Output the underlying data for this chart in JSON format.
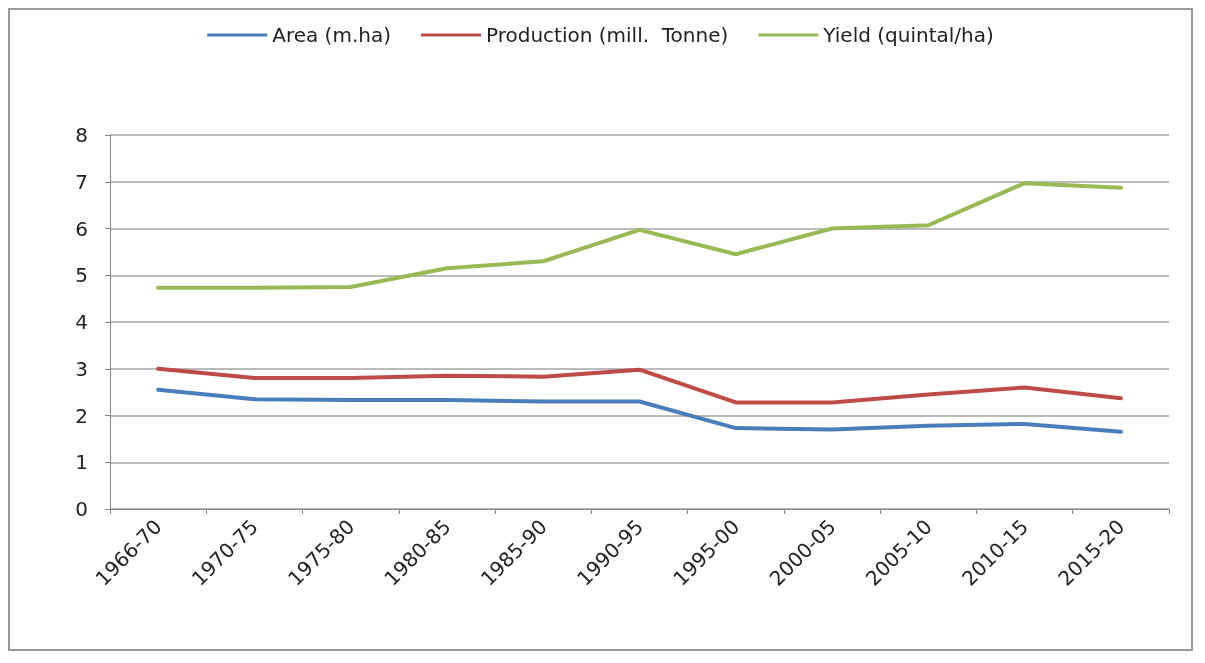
{
  "chart_data": {
    "type": "line",
    "categories": [
      "1966-70",
      "1970-75",
      "1975-80",
      "1980-85",
      "1985-90",
      "1990-95",
      "1995-00",
      "2000-05",
      "2005-10",
      "2010-15",
      "2015-20"
    ],
    "series": [
      {
        "name": "Area (m.ha)",
        "color": "#4a7ebb",
        "values": [
          2.55,
          2.35,
          2.33,
          2.33,
          2.3,
          2.3,
          1.73,
          1.7,
          1.78,
          1.82,
          1.65
        ]
      },
      {
        "name": "Production (mill.  Tonne)",
        "color": "#be4b48",
        "values": [
          3.0,
          2.8,
          2.8,
          2.85,
          2.83,
          2.98,
          2.28,
          2.28,
          2.45,
          2.6,
          2.37
        ]
      },
      {
        "name": "Yield (quintal/ha)",
        "color": "#98b954",
        "values": [
          4.73,
          4.73,
          4.75,
          5.15,
          5.3,
          5.97,
          5.45,
          6.0,
          6.07,
          6.97,
          6.87
        ]
      }
    ],
    "ylim": [
      0,
      8
    ],
    "yticks": [
      0,
      1,
      2,
      3,
      4,
      5,
      6,
      7,
      8
    ],
    "grid": "y",
    "legend": "top",
    "marker": "none",
    "line_style": "solid"
  }
}
